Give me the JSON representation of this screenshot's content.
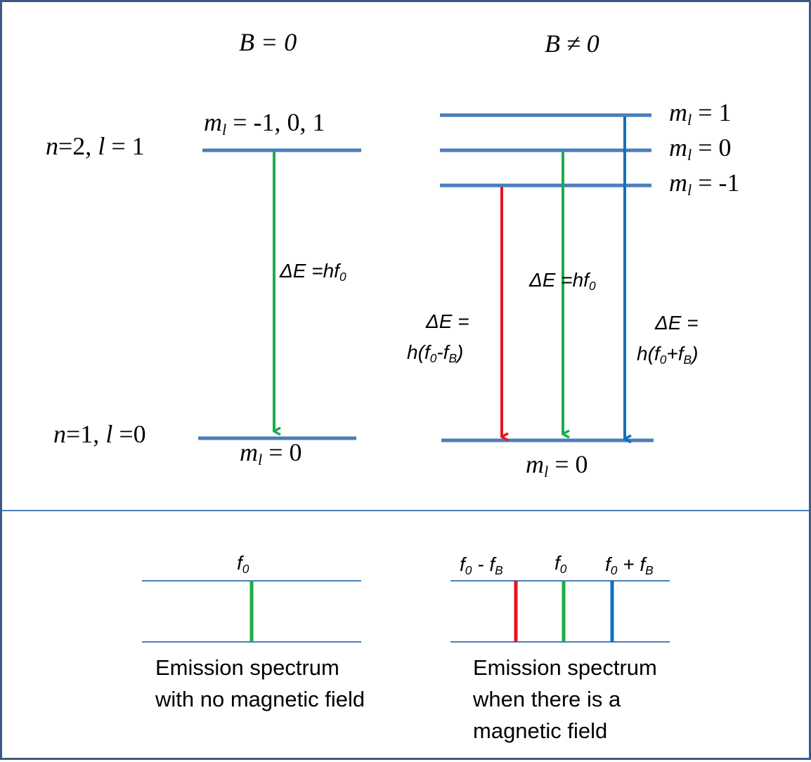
{
  "headings": {
    "left": "B = 0",
    "right": "B ≠ 0"
  },
  "left_panel": {
    "upper_state": "n=2, l = 1",
    "upper_ml": "m_l = -1, 0, 1",
    "lower_state": "n=1, l =0",
    "lower_ml": "m_l = 0",
    "transition_label": "ΔE =hf_0"
  },
  "right_panel": {
    "sublevel_labels": [
      "m_l = 1",
      "m_l = 0",
      "m_l = -1"
    ],
    "lower_ml": "m_l = 0",
    "transitions": [
      {
        "from": "m_l = -1",
        "label_line1": "ΔE =",
        "label_line2": "h(f_0-f_B)",
        "color": "#e8141c"
      },
      {
        "from": "m_l = 0",
        "label": "ΔE =hf_0",
        "color": "#1aad4b"
      },
      {
        "from": "m_l = 1",
        "label_line1": "ΔE =",
        "label_line2": "h(f_0+f_B)",
        "color": "#1170c0"
      }
    ]
  },
  "spectra": {
    "left": {
      "line_labels": [
        "f_0"
      ],
      "caption": "Emission spectrum with no magnetic field"
    },
    "right": {
      "line_labels": [
        "f_0 - f_B",
        "f_0",
        "f_0 + f_B"
      ],
      "caption": "Emission spectrum when there is a magnetic field"
    }
  },
  "colors": {
    "level": "#4a7dbb",
    "frame": "#3a5b86",
    "red": "#e8141c",
    "green": "#1aad4b",
    "blue": "#1170c0",
    "thin_line": "#4a7dbb"
  }
}
